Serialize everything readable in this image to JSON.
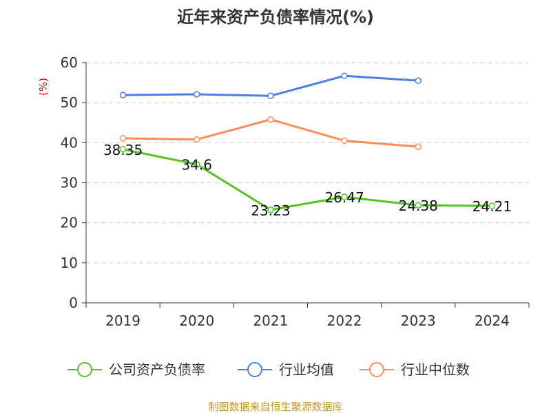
{
  "chart_data": {
    "type": "line",
    "title": "近年来资产负债率情况(%)",
    "ylabel": "(%)",
    "xlabel": "",
    "categories": [
      "2019",
      "2020",
      "2021",
      "2022",
      "2023",
      "2024"
    ],
    "ylim": [
      0,
      60
    ],
    "yticks": [
      0,
      10,
      20,
      30,
      40,
      50,
      60
    ],
    "grid": true,
    "legend_position": "bottom",
    "series": [
      {
        "name": "公司资产负债率",
        "color": "#52c41a",
        "values": [
          38.35,
          34.6,
          23.23,
          26.47,
          24.38,
          24.21
        ],
        "labels": [
          "38.35",
          "34.6",
          "23.23",
          "26.47",
          "24.38",
          "24.21"
        ]
      },
      {
        "name": "行业均值",
        "color": "#4a7ee0",
        "values": [
          51.9,
          52.1,
          51.7,
          56.7,
          55.5,
          null
        ]
      },
      {
        "name": "行业中位数",
        "color": "#ff8c55",
        "values": [
          41.1,
          40.8,
          45.8,
          40.5,
          39.0,
          null
        ]
      }
    ]
  },
  "source": "制图数据来自恒生聚源数据库"
}
